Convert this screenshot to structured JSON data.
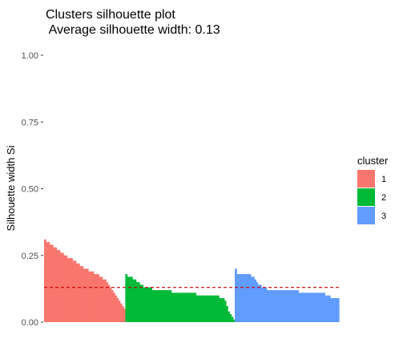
{
  "chart_data": {
    "type": "bar",
    "title": "Clusters silhouette plot",
    "subtitle": " Average silhouette width: 0.13",
    "xlabel": "",
    "ylabel": "Silhouette width Si",
    "ylim": [
      0,
      1
    ],
    "y_ticks": [
      "0.00",
      "0.25",
      "0.50",
      "0.75",
      "1.00"
    ],
    "average_silhouette": 0.13,
    "grid": false,
    "legend": {
      "title": "cluster",
      "placement": "right"
    },
    "series": [
      {
        "name": "1",
        "color": "#F8766D",
        "values": [
          0.31,
          0.3,
          0.3,
          0.29,
          0.29,
          0.28,
          0.28,
          0.27,
          0.27,
          0.26,
          0.26,
          0.25,
          0.25,
          0.24,
          0.24,
          0.24,
          0.23,
          0.23,
          0.22,
          0.22,
          0.21,
          0.21,
          0.2,
          0.2,
          0.2,
          0.19,
          0.19,
          0.19,
          0.18,
          0.18,
          0.18,
          0.17,
          0.17,
          0.16,
          0.16,
          0.15,
          0.14,
          0.13,
          0.12,
          0.11,
          0.1,
          0.09,
          0.08,
          0.07,
          0.06,
          0.05
        ]
      },
      {
        "name": "2",
        "color": "#00BA38",
        "values": [
          0.18,
          0.17,
          0.17,
          0.17,
          0.16,
          0.16,
          0.15,
          0.15,
          0.14,
          0.14,
          0.13,
          0.13,
          0.13,
          0.13,
          0.13,
          0.12,
          0.12,
          0.12,
          0.12,
          0.12,
          0.12,
          0.12,
          0.12,
          0.12,
          0.12,
          0.12,
          0.11,
          0.11,
          0.11,
          0.11,
          0.11,
          0.11,
          0.11,
          0.11,
          0.11,
          0.11,
          0.11,
          0.11,
          0.11,
          0.11,
          0.1,
          0.1,
          0.1,
          0.1,
          0.1,
          0.1,
          0.1,
          0.1,
          0.1,
          0.1,
          0.1,
          0.1,
          0.1,
          0.09,
          0.09,
          0.09,
          0.08,
          0.06,
          0.04,
          0.03,
          0.02,
          0.01
        ]
      },
      {
        "name": "3",
        "color": "#619CFF",
        "values": [
          0.2,
          0.18,
          0.18,
          0.18,
          0.18,
          0.18,
          0.18,
          0.18,
          0.18,
          0.17,
          0.17,
          0.16,
          0.15,
          0.14,
          0.14,
          0.13,
          0.13,
          0.13,
          0.12,
          0.12,
          0.12,
          0.12,
          0.12,
          0.12,
          0.12,
          0.12,
          0.12,
          0.12,
          0.12,
          0.12,
          0.12,
          0.12,
          0.12,
          0.12,
          0.12,
          0.12,
          0.11,
          0.11,
          0.11,
          0.11,
          0.11,
          0.11,
          0.11,
          0.11,
          0.11,
          0.11,
          0.11,
          0.11,
          0.11,
          0.11,
          0.11,
          0.1,
          0.1,
          0.1,
          0.09,
          0.09,
          0.09,
          0.09,
          0.09
        ]
      }
    ],
    "reference_line": {
      "y": 0.13,
      "color": "#CC0000",
      "style": "dashed"
    }
  }
}
